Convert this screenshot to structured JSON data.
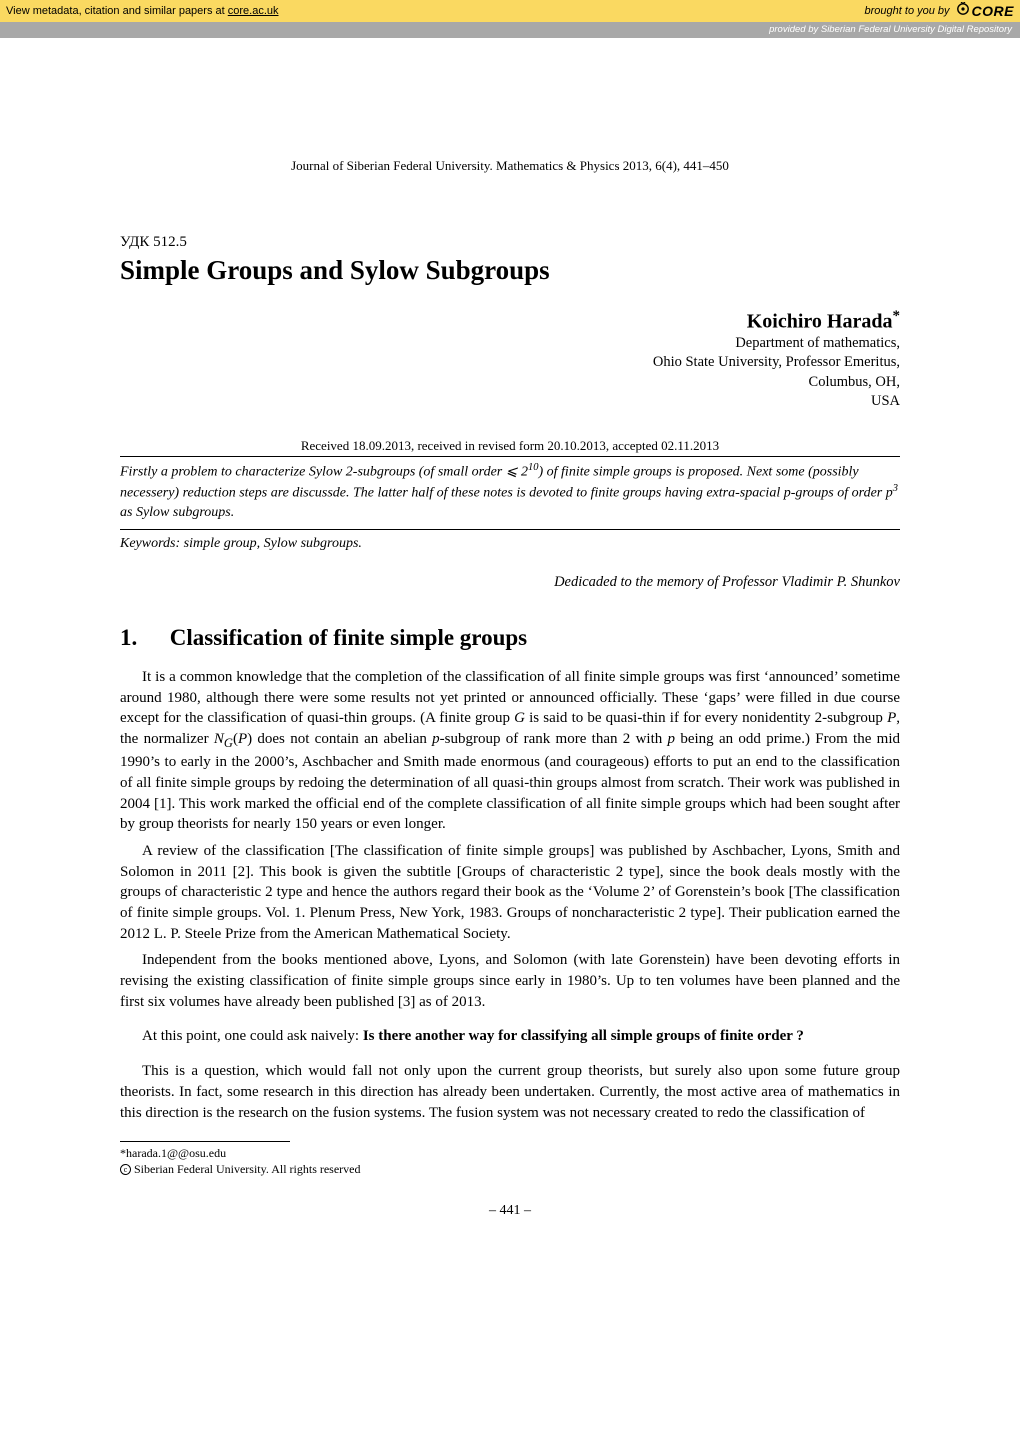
{
  "banner": {
    "left_prefix": "View metadata, citation and similar papers at ",
    "left_link": "core.ac.uk",
    "right_prefix": "brought to you by",
    "logo_text": "CORE",
    "sub": "provided by Siberian Federal University Digital Repository",
    "bg_color": "#fad961",
    "sub_bg_color": "#a8a8a8"
  },
  "journal_line": "Journal of Siberian Federal University. Mathematics & Physics 2013, 6(4), 441–450",
  "udk": "УДК 512.5",
  "title": "Simple Groups and Sylow Subgroups",
  "author": {
    "name": "Koichiro Harada",
    "sup": "*",
    "affil1": "Department of mathematics,",
    "affil2": "Ohio State University, Professor Emeritus,",
    "affil3": "Columbus, OH,",
    "affil4": "USA"
  },
  "received": "Received 18.09.2013, received in revised form 20.10.2013, accepted 02.11.2013",
  "abstract_html": "Firstly a problem to characterize Sylow 2-subgroups (of small order ⩽ 2<sup>10</sup>) of finite simple groups is proposed. Next some (possibly necessery) reduction steps are discussde. The latter half of these notes is devoted to finite groups having extra-spacial p-groups of order p<sup>3</sup> as Sylow subgroups.",
  "keywords": "Keywords: simple group, Sylow subgroups.",
  "dedication": "Dedicaded to the memory of Professor Vladimir P. Shunkov",
  "section": {
    "num": "1.",
    "title": "Classification of finite simple groups"
  },
  "para1_html": "It is a common knowledge that the completion of the classification of all finite simple groups was first ‘announced’ sometime around 1980, although there were some results not yet printed or announced officially. These ‘gaps’ were filled in due course except for the classification of quasi-thin groups. (A finite group <span class='mi'>G</span> is said to be quasi-thin if for every nonidentity 2-subgroup <span class='mi'>P</span>, the normalizer <span class='mi'>N<sub>G</sub></span>(<span class='mi'>P</span>) does not contain an abelian <span class='mi'>p</span>-subgroup of rank more than 2 with <span class='mi'>p</span> being an odd prime.) From the mid 1990’s to early in the 2000’s, Aschbacher and Smith made enormous (and courageous) efforts to put an end to the classification of all finite simple groups by redoing the determination of all quasi-thin groups almost from scratch. Their work was published in 2004 [1]. This work marked the official end of the complete classification of all finite simple groups which had been sought after by group theorists for nearly 150 years or even longer.",
  "para2_html": "A review of the classification [The classification of finite simple groups] was published by Aschbacher, Lyons, Smith and Solomon in 2011 [2]. This book is given the subtitle [Groups of characteristic 2 type], since the book deals mostly with the groups of characteristic 2 type and hence the authors regard their book as the ‘Volume 2’ of Gorenstein’s book [The classification of finite simple groups. Vol. 1. Plenum Press, New York, 1983. Groups of noncharacteristic 2 type]. Their publication earned the 2012 L. P. Steele Prize from the American Mathematical Society.",
  "para3_html": "Independent from the books mentioned above, Lyons, and Solomon (with late Gorenstein) have been devoting efforts in revising the existing classification of finite simple groups since early in 1980’s. Up to ten volumes have been planned and the first six volumes have already been published [3] as of 2013.",
  "question_prefix": "At this point, one could ask naively: ",
  "question_bold": "Is there another way for classifying all simple groups of finite order ?",
  "para5_html": "This is a question, which would fall not only upon the current group theorists, but surely also upon some future group theorists. In fact, some research in this direction has already been undertaken. Currently, the most active area of mathematics in this direction is the research on the fusion systems. The fusion system was not necessary created to redo the classification of",
  "footnotes": {
    "f1": "*harada.1@@osu.edu",
    "f2": " Siberian Federal University. All rights reserved"
  },
  "pagenum": "– 441 –"
}
